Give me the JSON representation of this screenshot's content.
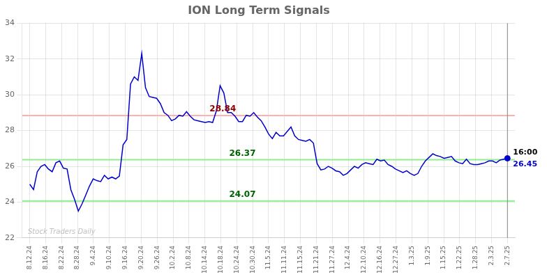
{
  "chart_data": {
    "type": "line",
    "title": "ION Long Term Signals",
    "x": [
      0,
      1,
      2,
      3,
      4,
      5,
      6,
      7,
      8,
      9,
      10,
      11,
      12,
      13,
      14,
      15,
      16,
      17,
      18,
      19,
      20,
      21,
      22,
      23,
      24,
      25,
      26,
      27,
      28,
      29,
      30,
      31,
      32,
      33,
      34,
      35,
      36,
      37,
      38,
      39,
      40,
      41,
      42,
      43,
      44,
      45,
      46,
      47,
      48,
      49,
      50,
      51,
      52,
      53,
      54,
      55,
      56,
      57,
      58,
      59,
      60,
      61,
      62,
      63,
      64,
      65,
      66,
      67,
      68,
      69,
      70,
      71,
      72,
      73,
      74,
      75,
      76,
      77,
      78,
      79,
      80,
      81,
      82,
      83,
      84,
      85,
      86,
      87,
      88,
      89,
      90,
      91,
      92,
      93,
      94,
      95,
      96,
      97,
      98,
      99,
      100,
      101,
      102,
      103,
      104,
      105,
      106,
      107,
      108,
      109,
      110,
      111,
      112,
      113,
      114,
      115,
      116,
      117,
      118,
      119,
      120,
      121,
      122,
      123,
      124,
      125,
      126,
      127,
      128
    ],
    "values": [
      25.0,
      24.7,
      25.7,
      26.0,
      26.1,
      25.85,
      25.7,
      26.2,
      26.3,
      25.9,
      25.85,
      24.7,
      24.15,
      23.5,
      23.9,
      24.4,
      24.9,
      25.3,
      25.2,
      25.15,
      25.5,
      25.3,
      25.4,
      25.3,
      25.45,
      27.2,
      27.5,
      30.6,
      31.0,
      30.8,
      32.3,
      30.4,
      29.9,
      29.85,
      29.8,
      29.5,
      29.0,
      28.85,
      28.55,
      28.65,
      28.85,
      28.8,
      29.05,
      28.8,
      28.6,
      28.55,
      28.5,
      28.45,
      28.5,
      28.45,
      29.1,
      30.5,
      30.1,
      29.0,
      29.0,
      28.8,
      28.5,
      28.5,
      28.85,
      28.8,
      29.0,
      28.75,
      28.55,
      28.2,
      27.8,
      27.55,
      27.9,
      27.7,
      27.7,
      27.95,
      28.2,
      27.7,
      27.5,
      27.45,
      27.4,
      27.5,
      27.3,
      26.15,
      25.8,
      25.85,
      26.0,
      25.9,
      25.75,
      25.7,
      25.5,
      25.6,
      25.8,
      26.0,
      25.9,
      26.1,
      26.2,
      26.15,
      26.1,
      26.4,
      26.3,
      26.35,
      26.1,
      26.0,
      25.85,
      25.75,
      25.65,
      25.75,
      25.6,
      25.5,
      25.6,
      26.0,
      26.3,
      26.5,
      26.7,
      26.6,
      26.55,
      26.45,
      26.5,
      26.55,
      26.3,
      26.2,
      26.15,
      26.4,
      26.15,
      26.1,
      26.1,
      26.15,
      26.2,
      26.3,
      26.3,
      26.2,
      26.35,
      26.4,
      26.45
    ],
    "color": "#0000cc",
    "xlim": [
      -2,
      130
    ],
    "xticks": [
      {
        "value": 0,
        "label": "8.12.24"
      },
      {
        "value": 4.266666666666667,
        "label": "8.16.24"
      },
      {
        "value": 8.533333333333333,
        "label": "8.22.24"
      },
      {
        "value": 12.8,
        "label": "8.28.24"
      },
      {
        "value": 17.066666666666666,
        "label": "9.4.24"
      },
      {
        "value": 21.333333333333332,
        "label": "9.10.24"
      },
      {
        "value": 25.6,
        "label": "9.16.24"
      },
      {
        "value": 29.866666666666667,
        "label": "9.20.24"
      },
      {
        "value": 34.13333333333333,
        "label": "9.26.24"
      },
      {
        "value": 38.4,
        "label": "10.2.24"
      },
      {
        "value": 42.666666666666664,
        "label": "10.8.24"
      },
      {
        "value": 46.93333333333333,
        "label": "10.14.24"
      },
      {
        "value": 51.2,
        "label": "10.18.24"
      },
      {
        "value": 55.46666666666667,
        "label": "10.24.24"
      },
      {
        "value": 59.733333333333334,
        "label": "10.30.24"
      },
      {
        "value": 64,
        "label": "11.5.24"
      },
      {
        "value": 68.26666666666667,
        "label": "11.11.24"
      },
      {
        "value": 72.53333333333333,
        "label": "11.15.24"
      },
      {
        "value": 76.8,
        "label": "11.21.24"
      },
      {
        "value": 81.06666666666666,
        "label": "11.27.24"
      },
      {
        "value": 85.33333333333333,
        "label": "12.4.24"
      },
      {
        "value": 89.6,
        "label": "12.10.24"
      },
      {
        "value": 93.86666666666666,
        "label": "12.16.24"
      },
      {
        "value": 98.13333333333334,
        "label": "12.27.24"
      },
      {
        "value": 102.4,
        "label": "1.3.25"
      },
      {
        "value": 106.66666666666667,
        "label": "1.9.25"
      },
      {
        "value": 110.93333333333334,
        "label": "1.15.25"
      },
      {
        "value": 115.2,
        "label": "1.22.25"
      },
      {
        "value": 119.46666666666667,
        "label": "1.28.25"
      },
      {
        "value": 123.73333333333333,
        "label": "2.3.25"
      },
      {
        "value": 128,
        "label": "2.7.25"
      }
    ],
    "ylim": [
      22,
      34
    ],
    "yticks": [
      22,
      24,
      26,
      28,
      30,
      32,
      34
    ],
    "grid": true,
    "hlines": [
      {
        "value": 28.84,
        "color": "#ffb0b0",
        "label": "28.84",
        "label_color": "#8b0000"
      },
      {
        "value": 26.37,
        "color": "#90ee90",
        "label": "26.37",
        "label_color": "#006400"
      },
      {
        "value": 24.07,
        "color": "#90ee90",
        "label": "24.07",
        "label_color": "#006400"
      }
    ],
    "vlines": [
      {
        "value": 128,
        "color": "#888888"
      }
    ],
    "last_point": {
      "x": 128,
      "y": 26.45,
      "color": "#0000cc",
      "label": "26.45",
      "time": "16:00",
      "time_color": "#000000"
    },
    "watermark": {
      "text": "Stock Traders Daily",
      "color": "#c0c0c0"
    }
  }
}
